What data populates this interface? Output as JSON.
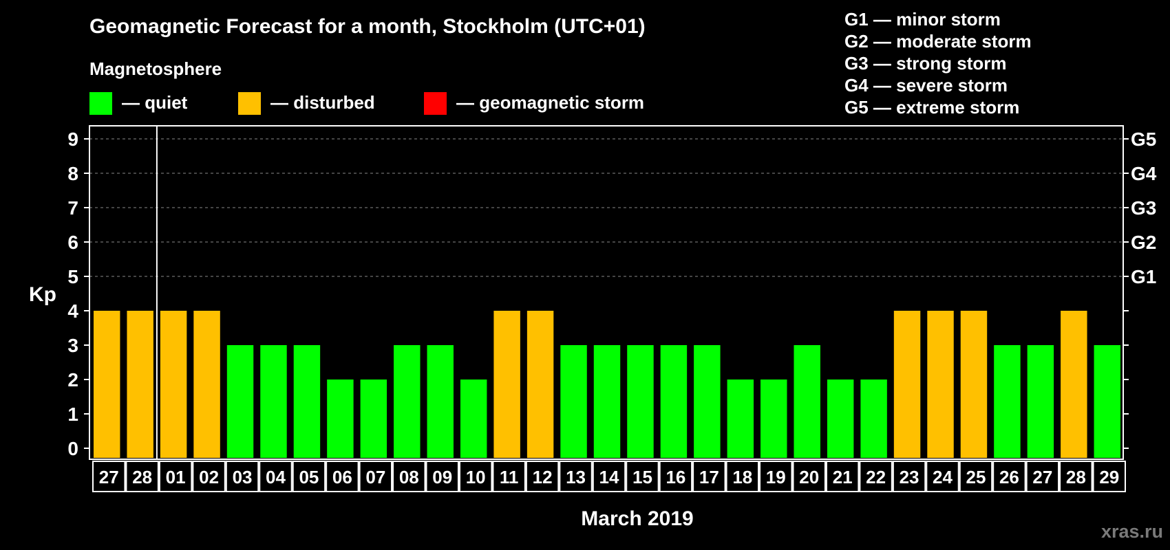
{
  "title": "Geomagnetic Forecast for a month, Stockholm (UTC+01)",
  "subtitle": "Magnetosphere",
  "colors": {
    "quiet": "#00ff00",
    "disturbed": "#ffc000",
    "storm": "#ff0000",
    "background": "#000000",
    "axis": "#ffffff"
  },
  "legend": [
    {
      "key": "quiet",
      "label": "— quiet"
    },
    {
      "key": "disturbed",
      "label": "— disturbed"
    },
    {
      "key": "storm",
      "label": "— geomagnetic storm"
    }
  ],
  "storm_scale": [
    "G1 — minor storm",
    "G2 — moderate storm",
    "G3 — strong storm",
    "G4 — severe storm",
    "G5 — extreme storm"
  ],
  "watermark": "xras.ru",
  "chart_data": {
    "type": "bar",
    "title": "Geomagnetic Forecast for a month, Stockholm (UTC+01)",
    "xlabel": "March 2019",
    "ylabel": "Kp",
    "ylim": [
      0,
      9
    ],
    "yticks": [
      "0",
      "1",
      "2",
      "3",
      "4",
      "5",
      "6",
      "7",
      "8",
      "9"
    ],
    "right_axis": [
      {
        "kp": 5,
        "label": "G1"
      },
      {
        "kp": 6,
        "label": "G2"
      },
      {
        "kp": 7,
        "label": "G3"
      },
      {
        "kp": 8,
        "label": "G4"
      },
      {
        "kp": 9,
        "label": "G5"
      }
    ],
    "grid": "dashed horizontal from Kp 5 to 9",
    "month_divider_after_index": 1,
    "categories": [
      "27",
      "28",
      "01",
      "02",
      "03",
      "04",
      "05",
      "06",
      "07",
      "08",
      "09",
      "10",
      "11",
      "12",
      "13",
      "14",
      "15",
      "16",
      "17",
      "18",
      "19",
      "20",
      "21",
      "22",
      "23",
      "24",
      "25",
      "26",
      "27",
      "28",
      "29"
    ],
    "values": [
      4,
      4,
      4,
      4,
      3,
      3,
      3,
      2,
      2,
      3,
      3,
      2,
      4,
      4,
      3,
      3,
      3,
      3,
      3,
      2,
      2,
      3,
      2,
      2,
      4,
      4,
      4,
      3,
      3,
      4,
      3
    ],
    "status": [
      "disturbed",
      "disturbed",
      "disturbed",
      "disturbed",
      "quiet",
      "quiet",
      "quiet",
      "quiet",
      "quiet",
      "quiet",
      "quiet",
      "quiet",
      "disturbed",
      "disturbed",
      "quiet",
      "quiet",
      "quiet",
      "quiet",
      "quiet",
      "quiet",
      "quiet",
      "quiet",
      "quiet",
      "quiet",
      "disturbed",
      "disturbed",
      "disturbed",
      "quiet",
      "quiet",
      "disturbed",
      "quiet"
    ]
  }
}
